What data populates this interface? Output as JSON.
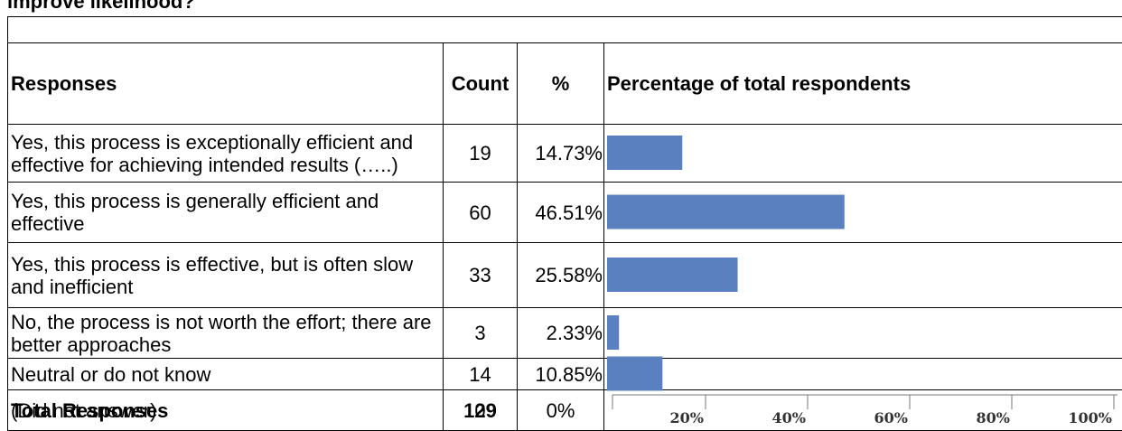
{
  "title": "improve likelihood?",
  "table": {
    "header": [
      "Responses",
      "Count",
      "%",
      "Percentage of total respondents"
    ],
    "rows": [
      [
        "Yes, this process is exceptionally efficient and effective for achieving intended results (…..)",
        "19",
        "14.73%"
      ],
      [
        "Yes, this process is generally efficient and effective",
        "60",
        "46.51%"
      ],
      [
        "Yes, this process is effective, but is often slow and inefficient",
        "33",
        "25.58%"
      ],
      [
        "No, the process is not worth the effort; there are better approaches",
        "3",
        "2.33%"
      ],
      [
        "Neutral or do not know",
        "14",
        "10.85%"
      ],
      [
        "(Did not answer)",
        "0",
        "0%"
      ]
    ],
    "total": [
      "Total Responses",
      "129"
    ]
  },
  "bars": {
    "values": [
      14.73,
      46.51,
      25.58,
      2.33,
      10.85,
      0
    ],
    "color": "#5a80c0",
    "xlim": [
      0,
      100
    ],
    "xticks": [
      {
        "value": 20,
        "label": "20%"
      },
      {
        "value": 40,
        "label": "40%"
      },
      {
        "value": 60,
        "label": "60%"
      },
      {
        "value": 80,
        "label": "80%"
      },
      {
        "value": 100,
        "label": "100%"
      }
    ]
  }
}
